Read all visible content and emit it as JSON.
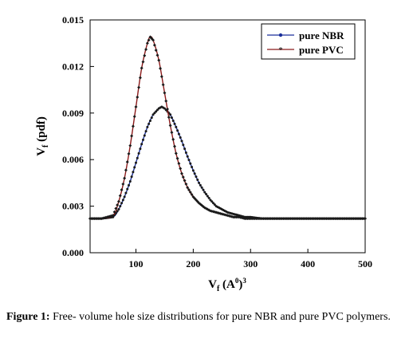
{
  "chart_data": {
    "type": "line",
    "xlabel_base": "V",
    "xlabel_sub": "f",
    "xlabel_rest": " (A",
    "xlabel_sup1": "0",
    "xlabel_close": ")",
    "xlabel_sup2": "3",
    "ylabel_base": "V",
    "ylabel_sub": "f",
    "ylabel_rest": " (pdf)",
    "xlim": [
      20,
      500
    ],
    "ylim": [
      0,
      0.015
    ],
    "x_ticks": [
      100,
      200,
      300,
      400,
      500
    ],
    "x_tick_labels": [
      "100",
      "200",
      "300",
      "400",
      "500"
    ],
    "y_ticks": [
      0.0,
      0.003,
      0.006,
      0.009,
      0.012,
      0.015
    ],
    "y_tick_labels": [
      "0.000",
      "0.003",
      "0.006",
      "0.009",
      "0.012",
      "0.015"
    ],
    "grid": false,
    "legend_position": "top-right",
    "series": [
      {
        "name": "pure NBR",
        "color": "#1a2f9a",
        "marker": "circle",
        "x": [
          20,
          40,
          60,
          70,
          80,
          90,
          100,
          110,
          120,
          130,
          140,
          145,
          150,
          160,
          170,
          180,
          190,
          200,
          210,
          220,
          230,
          240,
          250,
          260,
          270,
          280,
          290,
          300,
          320,
          340,
          360,
          380,
          400,
          420,
          440,
          460,
          480,
          500
        ],
        "y": [
          0.0022,
          0.0022,
          0.0023,
          0.0028,
          0.0036,
          0.0046,
          0.0058,
          0.007,
          0.0081,
          0.0089,
          0.0093,
          0.0094,
          0.0093,
          0.0089,
          0.0081,
          0.0072,
          0.0062,
          0.0053,
          0.0045,
          0.0039,
          0.0034,
          0.003,
          0.0028,
          0.0026,
          0.0025,
          0.0024,
          0.0023,
          0.0023,
          0.0022,
          0.0022,
          0.0022,
          0.0022,
          0.0022,
          0.0022,
          0.0022,
          0.0022,
          0.0022,
          0.0022
        ]
      },
      {
        "name": "pure PVC",
        "color": "#8b1a1a",
        "marker": "star",
        "x": [
          20,
          40,
          60,
          70,
          80,
          90,
          100,
          110,
          120,
          125,
          130,
          140,
          150,
          160,
          170,
          180,
          190,
          200,
          210,
          220,
          230,
          240,
          250,
          260,
          270,
          280,
          290,
          300,
          320,
          340,
          360,
          380,
          400,
          420,
          440,
          460,
          480,
          500
        ],
        "y": [
          0.0022,
          0.0022,
          0.0024,
          0.0033,
          0.0048,
          0.0069,
          0.0094,
          0.0119,
          0.0135,
          0.0139,
          0.0137,
          0.0124,
          0.0103,
          0.0082,
          0.0064,
          0.0051,
          0.0042,
          0.0036,
          0.0032,
          0.0029,
          0.0027,
          0.0026,
          0.0025,
          0.0024,
          0.0023,
          0.0023,
          0.0022,
          0.0022,
          0.0022,
          0.0022,
          0.0022,
          0.0022,
          0.0022,
          0.0022,
          0.0022,
          0.0022,
          0.0022,
          0.0022
        ]
      }
    ]
  },
  "caption": {
    "label": "Figure 1:",
    "text": " Free- volume hole size distributions for pure NBR and pure PVC polymers."
  }
}
